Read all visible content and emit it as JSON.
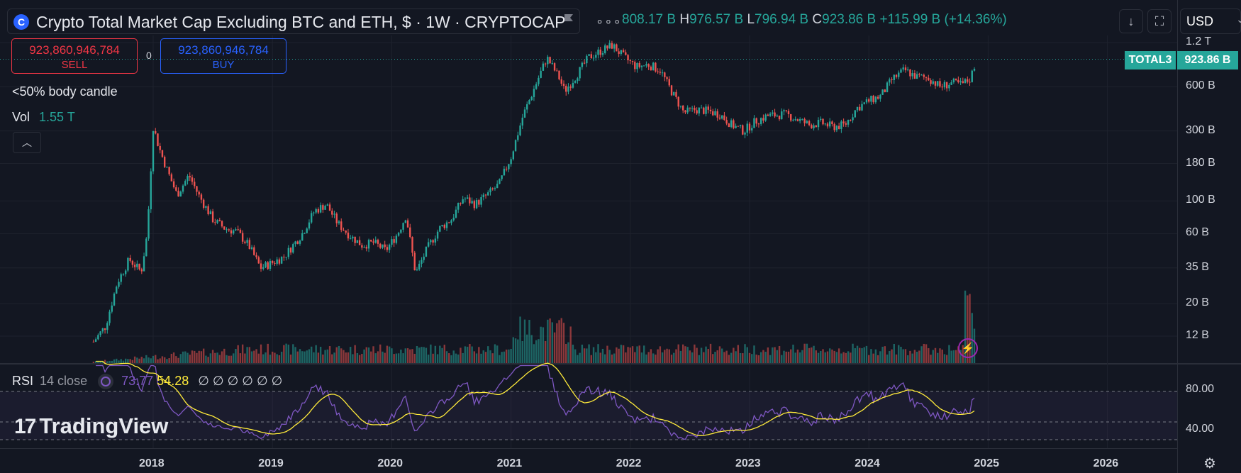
{
  "header": {
    "title": "Crypto Total Market Cap Excluding BTC and ETH, $ · 1W · CRYPTOCAP",
    "ohlc": {
      "open_value": "808.17 B",
      "high_key": "H",
      "high_value": "976.57 B",
      "low_key": "L",
      "low_value": "796.94 B",
      "close_key": "C",
      "close_value": "923.86 B",
      "change": "+115.99 B (+14.36%)"
    },
    "currency": "USD"
  },
  "trade": {
    "sell_price": "923,860,946,784",
    "sell_label": "SELL",
    "buy_price": "923,860,946,784",
    "buy_label": "BUY",
    "spread": "0"
  },
  "indicators": {
    "body_candle": "<50% body candle",
    "vol_label": "Vol",
    "vol_value": "1.55 T",
    "rsi_name": "RSI",
    "rsi_params": "14 close",
    "rsi_value": "73.77",
    "rsi_ma_value": "54.28",
    "rsi_na": "∅ ∅ ∅ ∅ ∅ ∅"
  },
  "price_tags": {
    "symbol": "TOTAL3",
    "price": "923.86 B"
  },
  "watermark": "TradingView",
  "colors": {
    "background": "#131722",
    "up": "#26a69a",
    "down": "#ef5350",
    "rsi_line": "#7e57c2",
    "rsi_ma": "#ffeb3b"
  },
  "chart_data": {
    "type": "candlestick",
    "y_scale": "log",
    "y_ticks": [
      "1.2 T",
      "600 B",
      "300 B",
      "180 B",
      "100 B",
      "60 B",
      "35 B",
      "20 B",
      "12 B"
    ],
    "x_ticks": [
      "2018",
      "2019",
      "2020",
      "2021",
      "2022",
      "2023",
      "2024",
      "2025",
      "2026"
    ],
    "rsi_ticks": [
      "80.00",
      "40.00"
    ],
    "close_series_B": [
      [
        2017.5,
        11
      ],
      [
        2017.6,
        14
      ],
      [
        2017.7,
        28
      ],
      [
        2017.8,
        40
      ],
      [
        2017.9,
        33
      ],
      [
        2017.95,
        60
      ],
      [
        2018.0,
        320
      ],
      [
        2018.05,
        230
      ],
      [
        2018.12,
        160
      ],
      [
        2018.2,
        110
      ],
      [
        2018.3,
        150
      ],
      [
        2018.38,
        110
      ],
      [
        2018.5,
        75
      ],
      [
        2018.6,
        65
      ],
      [
        2018.7,
        62
      ],
      [
        2018.8,
        50
      ],
      [
        2018.9,
        35
      ],
      [
        2019.0,
        38
      ],
      [
        2019.1,
        42
      ],
      [
        2019.25,
        60
      ],
      [
        2019.35,
        85
      ],
      [
        2019.45,
        95
      ],
      [
        2019.55,
        70
      ],
      [
        2019.65,
        58
      ],
      [
        2019.75,
        50
      ],
      [
        2019.85,
        52
      ],
      [
        2019.95,
        46
      ],
      [
        2020.05,
        60
      ],
      [
        2020.12,
        80
      ],
      [
        2020.2,
        32
      ],
      [
        2020.3,
        48
      ],
      [
        2020.4,
        65
      ],
      [
        2020.5,
        75
      ],
      [
        2020.6,
        105
      ],
      [
        2020.7,
        95
      ],
      [
        2020.8,
        110
      ],
      [
        2020.9,
        130
      ],
      [
        2021.0,
        200
      ],
      [
        2021.1,
        380
      ],
      [
        2021.2,
        600
      ],
      [
        2021.3,
        950
      ],
      [
        2021.4,
        700
      ],
      [
        2021.45,
        560
      ],
      [
        2021.55,
        720
      ],
      [
        2021.65,
        950
      ],
      [
        2021.75,
        1050
      ],
      [
        2021.85,
        1150
      ],
      [
        2021.95,
        950
      ],
      [
        2022.05,
        820
      ],
      [
        2022.15,
        850
      ],
      [
        2022.25,
        780
      ],
      [
        2022.35,
        550
      ],
      [
        2022.45,
        400
      ],
      [
        2022.55,
        420
      ],
      [
        2022.65,
        410
      ],
      [
        2022.75,
        390
      ],
      [
        2022.85,
        330
      ],
      [
        2022.95,
        300
      ],
      [
        2023.05,
        350
      ],
      [
        2023.15,
        380
      ],
      [
        2023.3,
        390
      ],
      [
        2023.4,
        360
      ],
      [
        2023.5,
        330
      ],
      [
        2023.6,
        340
      ],
      [
        2023.7,
        320
      ],
      [
        2023.8,
        330
      ],
      [
        2023.9,
        430
      ],
      [
        2024.0,
        480
      ],
      [
        2024.1,
        520
      ],
      [
        2024.2,
        680
      ],
      [
        2024.3,
        780
      ],
      [
        2024.4,
        700
      ],
      [
        2024.5,
        690
      ],
      [
        2024.6,
        600
      ],
      [
        2024.7,
        640
      ],
      [
        2024.78,
        620
      ],
      [
        2024.85,
        680
      ],
      [
        2024.88,
        808
      ],
      [
        2024.9,
        924
      ]
    ]
  }
}
